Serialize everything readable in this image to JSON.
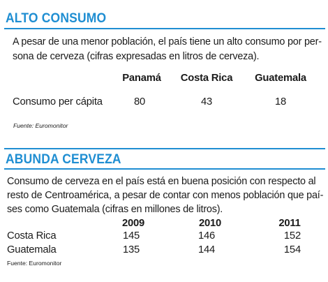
{
  "section1": {
    "title": "ALTO CONSUMO",
    "description_line1": "A pesar de una menor población, el país tiene un alto consumo por per-",
    "description_line2": "sona de cerveza (cifras expresadas en litros de cerveza).",
    "columns": [
      "Panamá",
      "Costa Rica",
      "Guatemala"
    ],
    "row_label": "Consumo per cápita",
    "values": [
      "80",
      "43",
      "18"
    ],
    "source": "Fuente: Euromonitor"
  },
  "section2": {
    "title": "ABUNDA CERVEZA",
    "description_line1": "Consumo de cerveza en el país está en buena posición con respecto al",
    "description_line2": "resto de Centroamérica, a pesar de contar con menos población que paí-",
    "description_line3": "ses como Guatemala (cifras en millones de litros).",
    "columns": [
      "2009",
      "2010",
      "2011"
    ],
    "rows": [
      {
        "label": "Costa Rica",
        "values": [
          "145",
          "146",
          "152"
        ]
      },
      {
        "label": "Guatemala",
        "values": [
          "135",
          "144",
          "154"
        ]
      }
    ],
    "source": "Fuente: Euromonitor"
  },
  "colors": {
    "accent": "#1f8ed2",
    "text": "#1a1a1a"
  }
}
